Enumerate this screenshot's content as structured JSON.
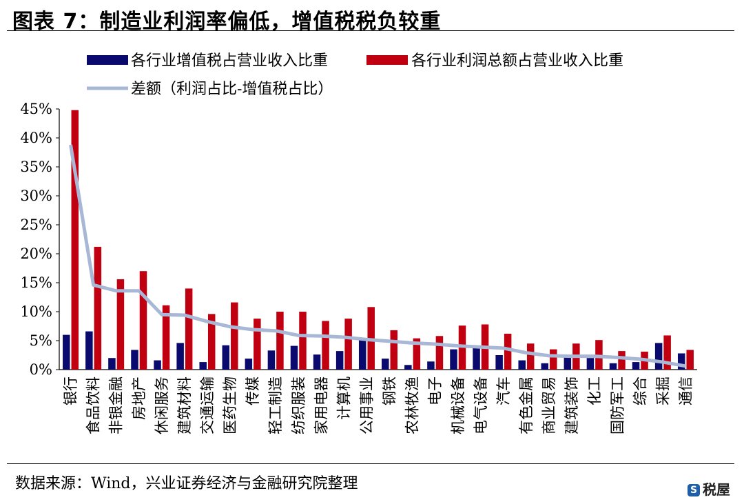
{
  "header": {
    "title": "图表 7：制造业利润率偏低，增值税税负较重"
  },
  "footer": {
    "source": "数据来源：Wind，兴业证券经济与金融研究院整理",
    "logo_text": "税屋"
  },
  "chart_data": {
    "type": "bar",
    "categories": [
      "银行",
      "食品饮料",
      "非银金融",
      "房地产",
      "休闲服务",
      "建筑材料",
      "交通运输",
      "医药生物",
      "传媒",
      "轻工制造",
      "纺织服装",
      "家用电器",
      "计算机",
      "公用事业",
      "钢铁",
      "农林牧渔",
      "电子",
      "机械设备",
      "电气设备",
      "汽车",
      "有色金属",
      "商业贸易",
      "建筑装饰",
      "化工",
      "国防军工",
      "综合",
      "采掘",
      "通信"
    ],
    "series": [
      {
        "name": "各行业增值税占营业收入比重",
        "kind": "bar",
        "color": "#0a0a6e",
        "values": [
          6.0,
          6.6,
          2.0,
          3.4,
          1.6,
          4.6,
          1.3,
          4.2,
          1.9,
          3.3,
          4.1,
          2.6,
          3.2,
          5.1,
          1.9,
          0.8,
          1.4,
          3.5,
          3.9,
          2.5,
          1.6,
          1.1,
          2.2,
          2.0,
          1.1,
          1.3,
          4.6,
          2.8
        ]
      },
      {
        "name": "各行业利润总额占营业收入比重",
        "kind": "bar",
        "color": "#c00010",
        "values": [
          44.8,
          21.2,
          15.6,
          17.0,
          11.1,
          14.0,
          9.6,
          11.6,
          8.8,
          10.0,
          10.0,
          8.4,
          8.8,
          10.8,
          6.8,
          5.4,
          5.8,
          7.6,
          7.8,
          6.2,
          4.5,
          3.5,
          4.5,
          5.1,
          3.2,
          3.1,
          5.9,
          3.4
        ]
      },
      {
        "name": "差额（利润占比-增值税占比）",
        "kind": "line",
        "color": "#a9b7d6",
        "values": [
          38.8,
          14.6,
          13.6,
          13.6,
          9.5,
          9.4,
          8.3,
          7.4,
          6.9,
          6.7,
          5.9,
          5.8,
          5.6,
          5.2,
          4.9,
          4.6,
          4.4,
          4.1,
          3.9,
          3.7,
          2.9,
          2.4,
          2.3,
          2.3,
          2.1,
          1.8,
          1.3,
          0.6
        ]
      }
    ],
    "y_ticks": [
      "0%",
      "5%",
      "10%",
      "15%",
      "20%",
      "25%",
      "30%",
      "35%",
      "40%",
      "45%"
    ],
    "ylim": [
      0,
      45
    ],
    "legend": "top",
    "grid": false
  }
}
